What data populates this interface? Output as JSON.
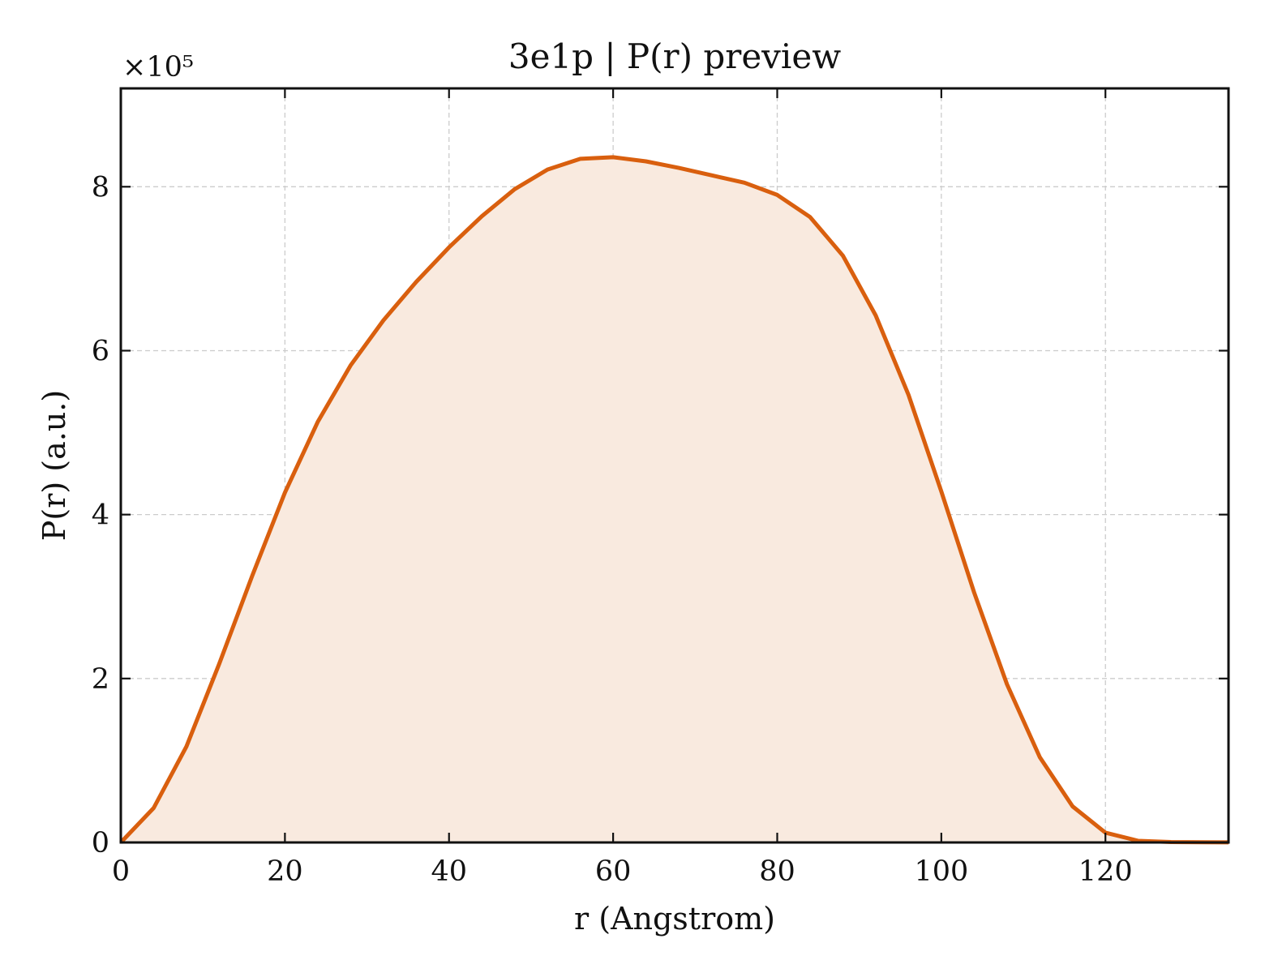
{
  "chart_data": {
    "type": "area",
    "title": "3e1p | P(r) preview",
    "xlabel": "r (Angstrom)",
    "ylabel": "P(r) (a.u.)",
    "y_multiplier_label": "×10⁵",
    "y_scale_factor": 100000,
    "xlim": [
      0,
      135
    ],
    "ylim": [
      0,
      920000
    ],
    "x_ticks": [
      0,
      20,
      40,
      60,
      80,
      100,
      120
    ],
    "y_ticks": [
      0,
      200000,
      400000,
      600000,
      800000
    ],
    "y_tick_labels": [
      "0",
      "2",
      "4",
      "6",
      "8"
    ],
    "x_tick_labels": [
      "0",
      "20",
      "40",
      "60",
      "80",
      "100",
      "120"
    ],
    "grid": true,
    "line_color": "#d95f0e",
    "fill_color": "#f9eadf",
    "series": [
      {
        "x": [
          0,
          4,
          8,
          12,
          16,
          20,
          24,
          28,
          32,
          36,
          40,
          44,
          48,
          52,
          56,
          60,
          64,
          68,
          72,
          76,
          80,
          84,
          88,
          92,
          96,
          100,
          104,
          108,
          112,
          116,
          120,
          124,
          128,
          132,
          135
        ],
        "y": [
          0,
          42000,
          117000,
          218000,
          325000,
          427000,
          513000,
          582000,
          637000,
          684000,
          726000,
          764000,
          797000,
          821000,
          834000,
          836000,
          831000,
          823000,
          814000,
          805000,
          790000,
          763000,
          716000,
          643000,
          546000,
          428000,
          305000,
          193000,
          104000,
          44000,
          12000,
          2000,
          500,
          200,
          100
        ]
      }
    ]
  }
}
